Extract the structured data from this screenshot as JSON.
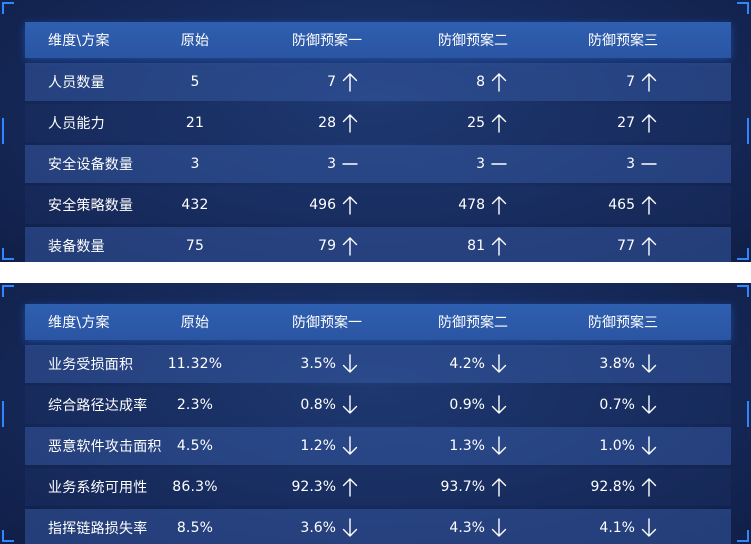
{
  "tables": [
    {
      "header": {
        "dimension": "维度\\方案",
        "original": "原始",
        "plan1": "防御预案一",
        "plan2": "防御预案二",
        "plan3": "防御预案三"
      },
      "rows": [
        {
          "name": "人员数量",
          "original": "5",
          "p1": "7",
          "p1_trend": "up-arrow-icon",
          "p2": "8",
          "p2_trend": "up-arrow-icon",
          "p3": "7",
          "p3_trend": "up-arrow-icon"
        },
        {
          "name": "人员能力",
          "original": "21",
          "p1": "28",
          "p1_trend": "up-arrow-icon",
          "p2": "25",
          "p2_trend": "up-arrow-icon",
          "p3": "27",
          "p3_trend": "up-arrow-icon"
        },
        {
          "name": "安全设备数量",
          "original": "3",
          "p1": "3",
          "p1_trend": "dash-icon",
          "p2": "3",
          "p2_trend": "dash-icon",
          "p3": "3",
          "p3_trend": "dash-icon"
        },
        {
          "name": "安全策略数量",
          "original": "432",
          "p1": "496",
          "p1_trend": "up-arrow-icon",
          "p2": "478",
          "p2_trend": "up-arrow-icon",
          "p3": "465",
          "p3_trend": "up-arrow-icon"
        },
        {
          "name": "装备数量",
          "original": "75",
          "p1": "79",
          "p1_trend": "up-arrow-icon",
          "p2": "81",
          "p2_trend": "up-arrow-icon",
          "p3": "77",
          "p3_trend": "up-arrow-icon"
        }
      ]
    },
    {
      "header": {
        "dimension": "维度\\方案",
        "original": "原始",
        "plan1": "防御预案一",
        "plan2": "防御预案二",
        "plan3": "防御预案三"
      },
      "rows": [
        {
          "name": "业务受损面积",
          "original": "11.32%",
          "p1": "3.5%",
          "p1_trend": "down-arrow-icon",
          "p2": "4.2%",
          "p2_trend": "down-arrow-icon",
          "p3": "3.8%",
          "p3_trend": "down-arrow-icon"
        },
        {
          "name": "综合路径达成率",
          "original": "2.3%",
          "p1": "0.8%",
          "p1_trend": "down-arrow-icon",
          "p2": "0.9%",
          "p2_trend": "down-arrow-icon",
          "p3": "0.7%",
          "p3_trend": "down-arrow-icon"
        },
        {
          "name": "恶意软件攻击面积",
          "original": "4.5%",
          "p1": "1.2%",
          "p1_trend": "down-arrow-icon",
          "p2": "1.3%",
          "p2_trend": "down-arrow-icon",
          "p3": "1.0%",
          "p3_trend": "down-arrow-icon"
        },
        {
          "name": "业务系统可用性",
          "original": "86.3%",
          "p1": "92.3%",
          "p1_trend": "up-arrow-icon",
          "p2": "93.7%",
          "p2_trend": "up-arrow-icon",
          "p3": "92.8%",
          "p3_trend": "up-arrow-icon"
        },
        {
          "name": "指挥链路损失率",
          "original": "8.5%",
          "p1": "3.6%",
          "p1_trend": "down-arrow-icon",
          "p2": "4.3%",
          "p2_trend": "down-arrow-icon",
          "p3": "4.1%",
          "p3_trend": "down-arrow-icon"
        }
      ]
    }
  ],
  "colors": {
    "panel_bg": "#16295a",
    "header_bg": "#2f5fb0",
    "row_light": "#2d4f92",
    "corner_accent": "#2f86ff",
    "text": "#ffffff"
  }
}
